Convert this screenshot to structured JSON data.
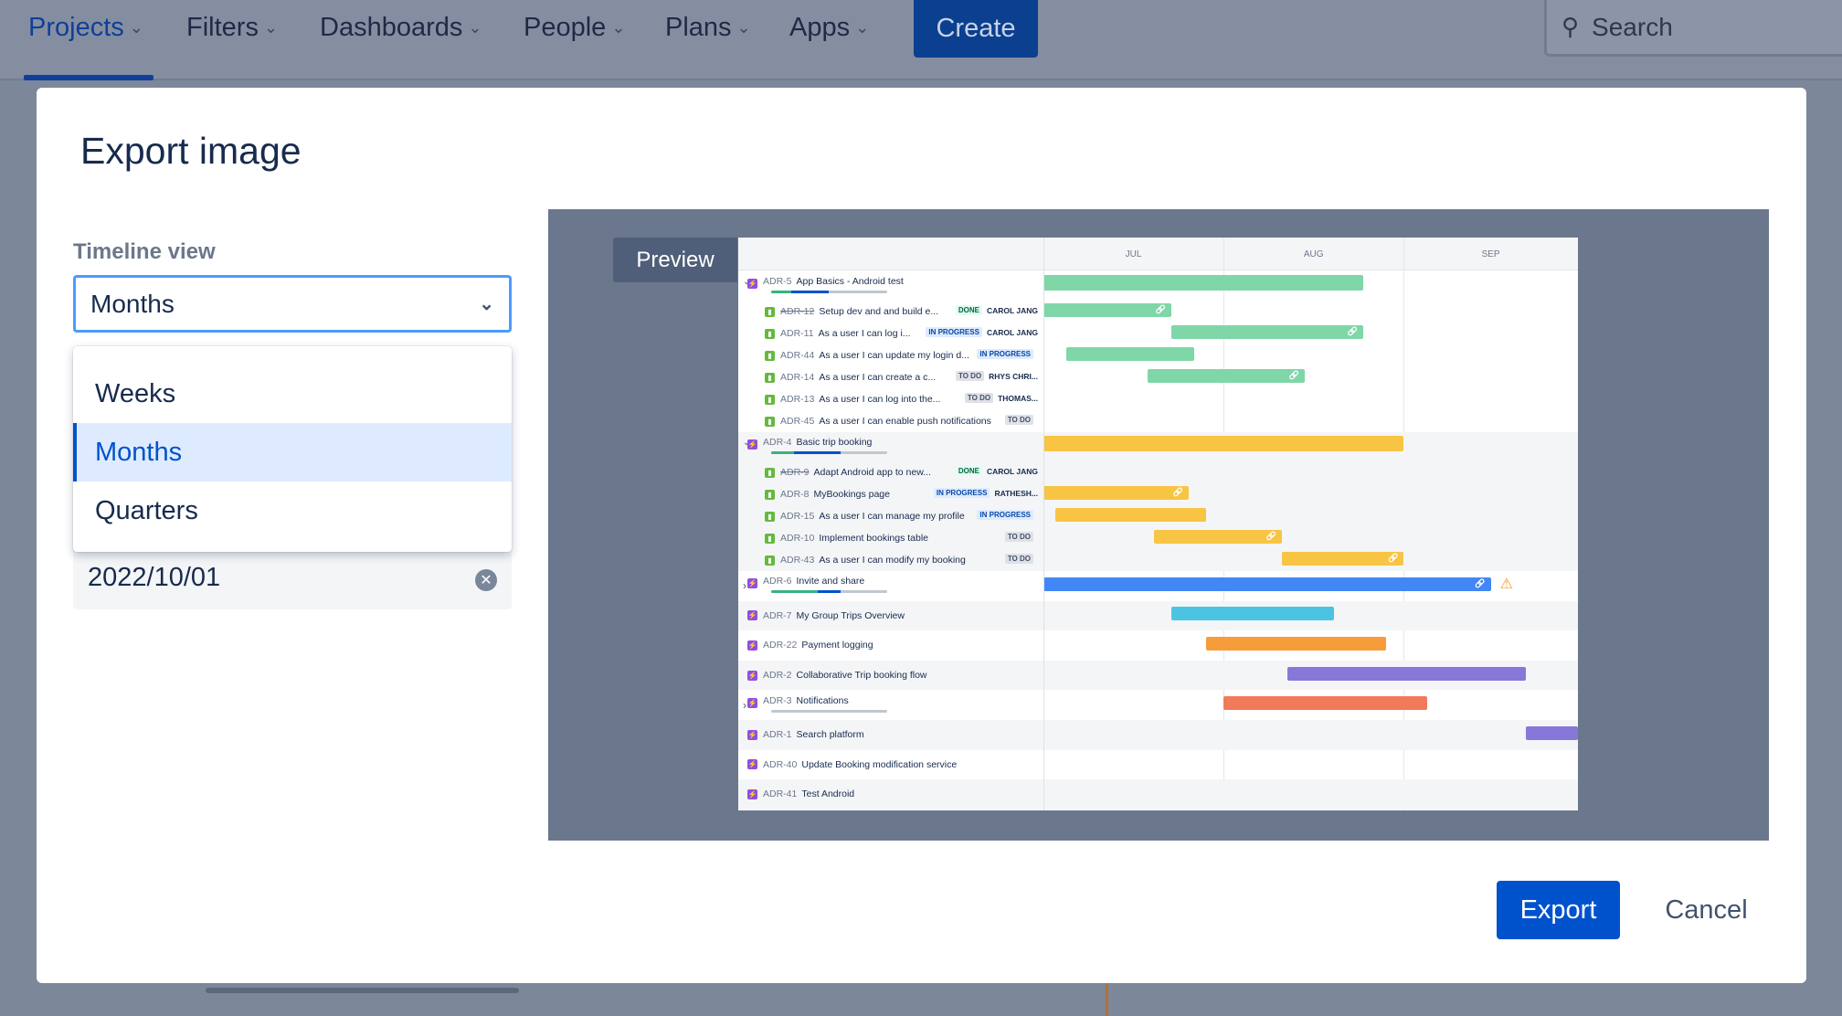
{
  "nav": {
    "items": [
      {
        "label": "Projects",
        "active": true
      },
      {
        "label": "Filters"
      },
      {
        "label": "Dashboards"
      },
      {
        "label": "People"
      },
      {
        "label": "Plans"
      },
      {
        "label": "Apps"
      }
    ],
    "create_label": "Create",
    "search_placeholder": "Search"
  },
  "dialog": {
    "title": "Export image",
    "timeline_view_label": "Timeline view",
    "timeline_view_value": "Months",
    "options": [
      "Weeks",
      "Months",
      "Quarters"
    ],
    "selected_option": "Months",
    "date_value": "2022/10/01",
    "preview_label": "Preview",
    "export_label": "Export",
    "cancel_label": "Cancel"
  },
  "timeline": {
    "months": [
      "JUL",
      "AUG",
      "SEP"
    ],
    "colors": {
      "green": "#7fd6a7",
      "yellow": "#f7c444",
      "blue": "#4287f5",
      "cyan": "#4cc3e3",
      "orange": "#f79c3b",
      "purple": "#8777d9",
      "red": "#f07a5a"
    },
    "rows": [
      {
        "type": "epic",
        "key": "ADR-5",
        "title": "App Basics - Android test",
        "expanded": true,
        "progress": [
          0.17,
          0.33
        ],
        "start": "07-01",
        "end": "08-24",
        "color": "green",
        "group": 0
      },
      {
        "type": "story",
        "key": "ADR-12",
        "title": "Setup dev and and build e...",
        "status": "DONE",
        "assignee": "CAROL JANG",
        "done": true,
        "start": "07-01",
        "end": "07-22",
        "color": "green",
        "linked": true,
        "group": 0
      },
      {
        "type": "story",
        "key": "ADR-11",
        "title": "As a user I can log i...",
        "status": "IN PROGRESS",
        "assignee": "CAROL JANG",
        "start": "07-23",
        "end": "08-24",
        "color": "green",
        "linked": true,
        "group": 0
      },
      {
        "type": "story",
        "key": "ADR-44",
        "title": "As a user I can update my login d...",
        "status": "IN PROGRESS",
        "start": "07-05",
        "end": "07-26",
        "color": "green",
        "group": 0
      },
      {
        "type": "story",
        "key": "ADR-14",
        "title": "As a user I can create a c...",
        "status": "TO DO",
        "assignee": "RHYS CHRI...",
        "start": "07-19",
        "end": "08-14",
        "color": "green",
        "linked": true,
        "group": 0
      },
      {
        "type": "story",
        "key": "ADR-13",
        "title": "As a user I can log into the...",
        "status": "TO DO",
        "assignee": "THOMAS...",
        "group": 0
      },
      {
        "type": "story",
        "key": "ADR-45",
        "title": "As a user I can enable push notifications",
        "status": "TO DO",
        "group": 0
      },
      {
        "type": "epic",
        "key": "ADR-4",
        "title": "Basic trip booking",
        "expanded": true,
        "progress": [
          0.2,
          0.4
        ],
        "start": "07-01",
        "end": "08-31",
        "color": "yellow",
        "group": 1
      },
      {
        "type": "story",
        "key": "ADR-9",
        "title": "Adapt Android app to new...",
        "status": "DONE",
        "assignee": "CAROL JANG",
        "done": true,
        "group": 1
      },
      {
        "type": "story",
        "key": "ADR-8",
        "title": "MyBookings page",
        "status": "IN PROGRESS",
        "assignee": "RATHESH...",
        "start": "07-01",
        "end": "07-25",
        "color": "yellow",
        "linked": true,
        "group": 1
      },
      {
        "type": "story",
        "key": "ADR-15",
        "title": "As a user I can manage my profile",
        "status": "IN PROGRESS",
        "start": "07-03",
        "end": "07-28",
        "color": "yellow",
        "group": 1
      },
      {
        "type": "story",
        "key": "ADR-10",
        "title": "Implement bookings table",
        "status": "TO DO",
        "start": "07-20",
        "end": "08-10",
        "color": "yellow",
        "linked": true,
        "group": 1
      },
      {
        "type": "story",
        "key": "ADR-43",
        "title": "As a user I can modify my booking",
        "status": "TO DO",
        "start": "08-11",
        "end": "08-31",
        "color": "yellow",
        "linked": true,
        "group": 1
      },
      {
        "type": "epic",
        "key": "ADR-6",
        "title": "Invite and share",
        "expanded": false,
        "progress": [
          0.4,
          0.2
        ],
        "start": "07-01",
        "end": "09-15",
        "color": "blue",
        "linked": true,
        "warning": true
      },
      {
        "type": "epic",
        "key": "ADR-7",
        "title": "My Group Trips Overview",
        "start": "07-23",
        "end": "08-19",
        "color": "cyan"
      },
      {
        "type": "epic",
        "key": "ADR-22",
        "title": "Payment logging",
        "start": "07-29",
        "end": "08-28",
        "color": "orange"
      },
      {
        "type": "epic",
        "key": "ADR-2",
        "title": "Collaborative Trip booking flow",
        "start": "08-12",
        "end": "09-21",
        "color": "purple"
      },
      {
        "type": "epic",
        "key": "ADR-3",
        "title": "Notifications",
        "expanded": false,
        "progress": [
          0,
          0
        ],
        "start": "08-01",
        "end": "09-04",
        "color": "red"
      },
      {
        "type": "epic",
        "key": "ADR-1",
        "title": "Search platform",
        "start": "09-22",
        "end": "09-30",
        "color": "purple"
      },
      {
        "type": "epic",
        "key": "ADR-40",
        "title": "Update Booking modification service"
      },
      {
        "type": "epic",
        "key": "ADR-41",
        "title": "Test Android"
      }
    ]
  }
}
